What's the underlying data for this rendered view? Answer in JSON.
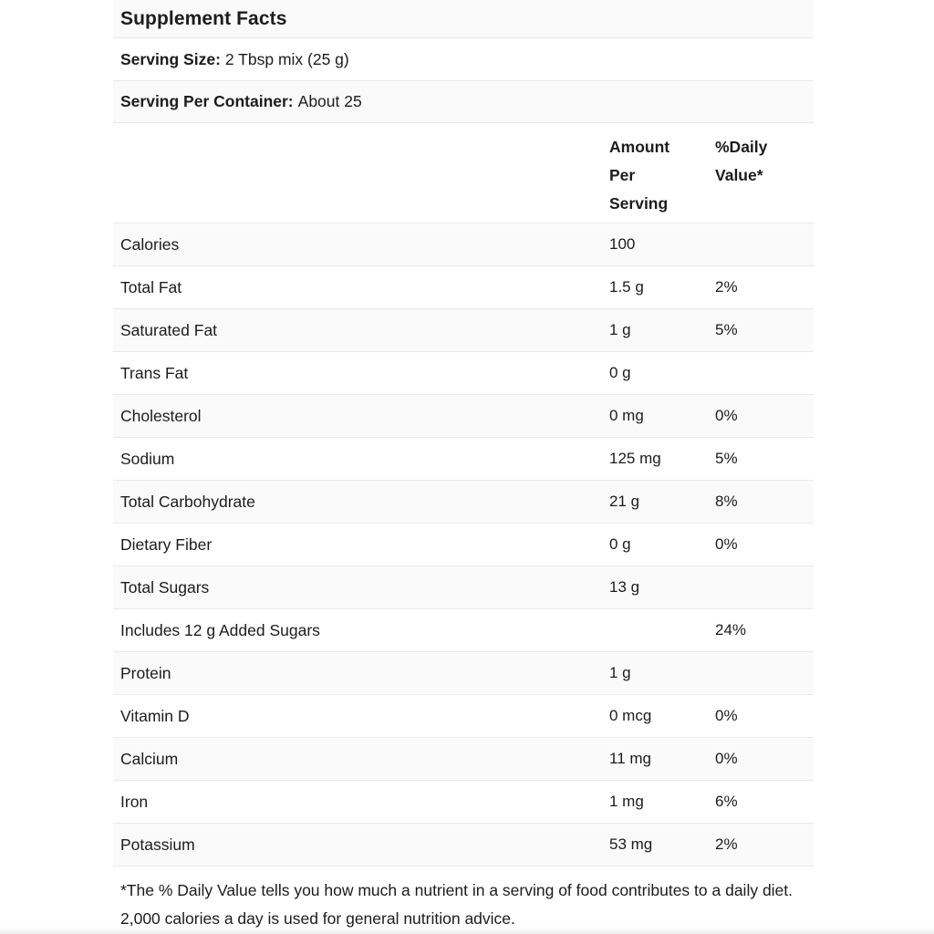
{
  "colors": {
    "row_alt_bg": "#fafafa",
    "row_bg": "#ffffff",
    "border": "#e9e9e9",
    "text": "#1c1c1c"
  },
  "header": {
    "title": "Supplement Facts"
  },
  "serving": {
    "size_label": "Serving Size:",
    "size_value": "2 Tbsp mix (25 g)",
    "container_label": "Serving Per Container:",
    "container_value": "About 25"
  },
  "table": {
    "columns": {
      "amount": "Amount Per Serving",
      "daily_value": "%Daily Value*"
    },
    "rows": [
      {
        "label": "Calories",
        "amount": "100",
        "daily_value": ""
      },
      {
        "label": "Total Fat",
        "amount": "1.5 g",
        "daily_value": "2%"
      },
      {
        "label": "Saturated Fat",
        "amount": "1 g",
        "daily_value": "5%"
      },
      {
        "label": "Trans Fat",
        "amount": "0 g",
        "daily_value": ""
      },
      {
        "label": "Cholesterol",
        "amount": "0 mg",
        "daily_value": "0%"
      },
      {
        "label": "Sodium",
        "amount": "125 mg",
        "daily_value": "5%"
      },
      {
        "label": "Total Carbohydrate",
        "amount": "21 g",
        "daily_value": "8%"
      },
      {
        "label": "Dietary Fiber",
        "amount": "0 g",
        "daily_value": "0%"
      },
      {
        "label": "Total Sugars",
        "amount": "13 g",
        "daily_value": ""
      },
      {
        "label": "Includes 12 g Added Sugars",
        "amount": "",
        "daily_value": "24%"
      },
      {
        "label": "Protein",
        "amount": "1 g",
        "daily_value": ""
      },
      {
        "label": "Vitamin D",
        "amount": "0 mcg",
        "daily_value": "0%"
      },
      {
        "label": "Calcium",
        "amount": "11 mg",
        "daily_value": "0%"
      },
      {
        "label": "Iron",
        "amount": "1 mg",
        "daily_value": "6%"
      },
      {
        "label": "Potassium",
        "amount": "53 mg",
        "daily_value": "2%"
      }
    ]
  },
  "footnote": "*The % Daily Value tells you how much a nutrient in a serving of food contributes to a daily diet. 2,000 calories a day is used for general nutrition advice."
}
